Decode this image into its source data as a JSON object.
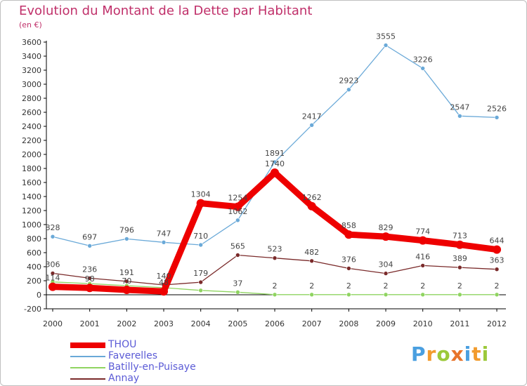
{
  "title": "Evolution du Montant de la Dette par Habitant",
  "subtitle": "(en €)",
  "logo": {
    "letters": [
      "P",
      "r",
      "o",
      "x",
      "i",
      "t",
      "i"
    ],
    "colors": [
      "#4a9fe0",
      "#f29b2e",
      "#9cc93a",
      "#e8742b",
      "#4a9fe0",
      "#f29b2e",
      "#9cc93a"
    ]
  },
  "chart_data": {
    "type": "line",
    "title": "Evolution du Montant de la Dette par Habitant",
    "ylabel": "(en €)",
    "xlabel": "",
    "x": [
      "2000",
      "2001",
      "2002",
      "2003",
      "2004",
      "2005",
      "2006",
      "2007",
      "2008",
      "2009",
      "2010",
      "2011",
      "2012"
    ],
    "ylim": [
      -200,
      3600
    ],
    "yticks": [
      -200,
      0,
      200,
      400,
      600,
      800,
      1000,
      1200,
      1400,
      1600,
      1800,
      2000,
      2200,
      2400,
      2600,
      2800,
      3000,
      3200,
      3400,
      3600
    ],
    "grid": false,
    "legend_position": "bottom-left",
    "series": [
      {
        "name": "THOU",
        "color": "#ee0000",
        "emphasis": true,
        "values": [
          114,
          98,
          70,
          48,
          1304,
          1254,
          1740,
          1262,
          858,
          829,
          774,
          713,
          644
        ],
        "labels": [
          "114",
          "98",
          "70",
          "48",
          "1304",
          "1254",
          "1740",
          "1262",
          "858",
          "829",
          "774",
          "713",
          "644"
        ]
      },
      {
        "name": "Faverelles",
        "color": "#6aa9d8",
        "values": [
          828,
          697,
          796,
          747,
          710,
          1062,
          1891,
          2417,
          2923,
          3555,
          3226,
          2547,
          2526
        ],
        "labels": [
          "828",
          "697",
          "796",
          "747",
          "710",
          "1062",
          "1891",
          "2417",
          "2923",
          "3555",
          "3226",
          "2547",
          "2526"
        ]
      },
      {
        "name": "Batilly-en-Puisaye",
        "color": "#8fd460",
        "values": [
          183,
          159,
          130,
          101,
          62,
          37,
          2,
          2,
          2,
          2,
          2,
          2,
          2
        ],
        "labels": [
          "",
          "",
          "",
          "",
          "",
          "37",
          "2",
          "2",
          "2",
          "2",
          "2",
          "2",
          "2"
        ]
      },
      {
        "name": "Annay",
        "color": "#7a2a2a",
        "values": [
          306,
          236,
          191,
          140,
          179,
          565,
          523,
          482,
          376,
          304,
          416,
          389,
          363
        ],
        "labels": [
          "306",
          "236",
          "191",
          "140",
          "179",
          "565",
          "523",
          "482",
          "376",
          "304",
          "416",
          "389",
          "363"
        ]
      }
    ]
  }
}
